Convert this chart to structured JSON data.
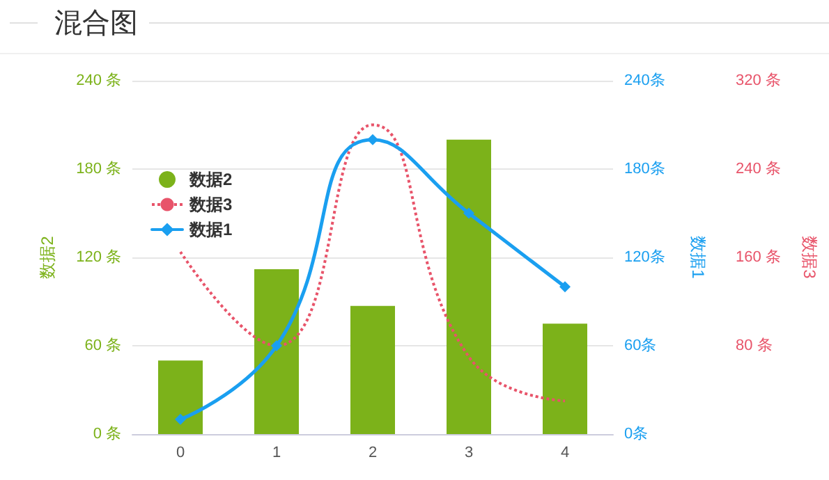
{
  "chart_data": {
    "type": "bar",
    "title": "混合图",
    "categories": [
      "0",
      "1",
      "2",
      "3",
      "4"
    ],
    "series": [
      {
        "name": "数据2",
        "color": "#7cb21a",
        "values": [
          50,
          112,
          87,
          200,
          75
        ]
      },
      {
        "name": "数据3",
        "type": "line",
        "axis": "y3",
        "color": "#e8546a",
        "line_style": "dotted",
        "marker": "none",
        "values": [
          165,
          80,
          280,
          70,
          30
        ]
      },
      {
        "name": "数据1",
        "type": "line",
        "axis": "y2",
        "color": "#1a9ff0",
        "line_style": "solid",
        "marker": "diamond",
        "values": [
          10,
          60,
          200,
          150,
          100
        ]
      }
    ],
    "ylabel": "数据2",
    "y2label": "数据1",
    "y3label": "数据3",
    "ylim": [
      0,
      240
    ],
    "yticks": [
      {
        "value": 0,
        "label": "0 条"
      },
      {
        "value": 60,
        "label": "60 条"
      },
      {
        "value": 120,
        "label": "120 条"
      },
      {
        "value": 180,
        "label": "180 条"
      },
      {
        "value": 240,
        "label": "240 条"
      }
    ],
    "y2lim": [
      0,
      240
    ],
    "y2ticks": [
      {
        "value": 0,
        "label": "0条"
      },
      {
        "value": 60,
        "label": "60条"
      },
      {
        "value": 120,
        "label": "120条"
      },
      {
        "value": 180,
        "label": "180条"
      },
      {
        "value": 240,
        "label": "240条"
      }
    ],
    "y3lim": [
      0,
      320
    ],
    "y3ticks": [
      {
        "value": 80,
        "label": "80 条"
      },
      {
        "value": 160,
        "label": "160 条"
      },
      {
        "value": 240,
        "label": "240 条"
      },
      {
        "value": 320,
        "label": "320 条"
      }
    ],
    "grid": "y",
    "legend": "top left"
  }
}
